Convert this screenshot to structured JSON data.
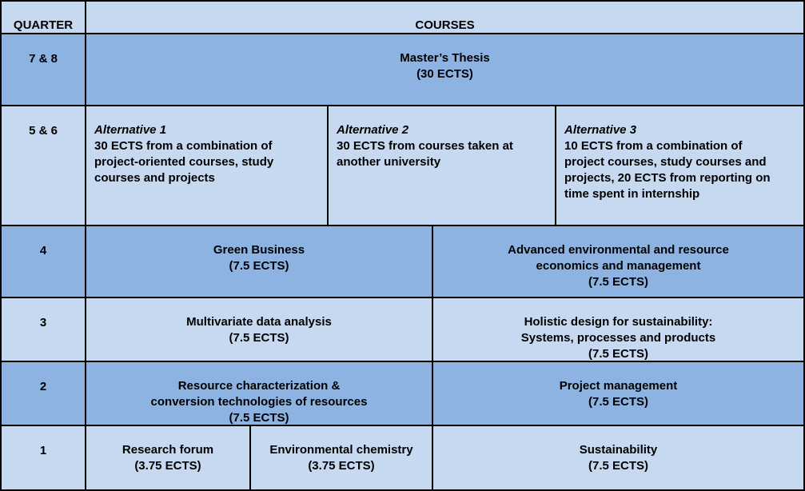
{
  "header": {
    "quarter_label": "QUARTER",
    "courses_label": "COURSES"
  },
  "rows": {
    "q78": {
      "quarter": "7 & 8",
      "thesis_title": "Master’s Thesis",
      "thesis_ects": "(30 ECTS)"
    },
    "q56": {
      "quarter": "5 & 6",
      "alt1": {
        "title": "Alternative 1",
        "lines": [
          "30 ECTS from a combination of",
          "project-oriented courses, study",
          "courses and projects"
        ]
      },
      "alt2": {
        "title": "Alternative 2",
        "lines": [
          "30 ECTS from courses taken at",
          "another university"
        ]
      },
      "alt3": {
        "title": "Alternative 3",
        "lines": [
          "10 ECTS from a combination of",
          "project courses, study courses and",
          "projects, 20 ECTS from reporting on",
          "time spent in internship"
        ]
      }
    },
    "q4": {
      "quarter": "4",
      "left": {
        "lines": [
          "Green Business",
          "(7.5 ECTS)"
        ]
      },
      "right": {
        "lines": [
          "Advanced environmental and resource",
          "economics and management",
          "(7.5 ECTS)"
        ]
      }
    },
    "q3": {
      "quarter": "3",
      "left": {
        "lines": [
          "Multivariate data analysis",
          "(7.5 ECTS)"
        ]
      },
      "right": {
        "lines": [
          "Holistic design for sustainability:",
          "Systems, processes and products",
          "(7.5 ECTS)"
        ]
      }
    },
    "q2": {
      "quarter": "2",
      "left": {
        "lines": [
          "Resource characterization &",
          "conversion technologies of resources",
          "(7.5 ECTS)"
        ]
      },
      "right": {
        "lines": [
          "Project management",
          "(7.5 ECTS)"
        ]
      }
    },
    "q1": {
      "quarter": "1",
      "a": {
        "lines": [
          "Research forum",
          "(3.75 ECTS)"
        ]
      },
      "b": {
        "lines": [
          "Environmental chemistry",
          "(3.75 ECTS)"
        ]
      },
      "c": {
        "lines": [
          "Sustainability",
          "(7.5 ECTS)"
        ]
      }
    }
  },
  "colors": {
    "light_row": "#c6d9f1",
    "dark_row": "#8db3e2",
    "border": "#000000"
  }
}
